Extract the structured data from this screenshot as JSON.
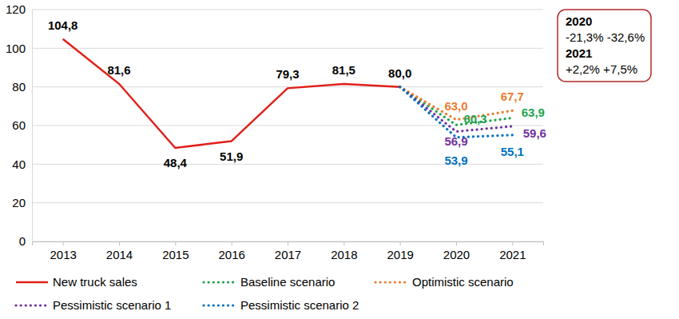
{
  "chart_data": {
    "type": "line",
    "categories": [
      "2013",
      "2014",
      "2015",
      "2016",
      "2017",
      "2018",
      "2019",
      "2020",
      "2021"
    ],
    "series": [
      {
        "name": "New truck sales",
        "color": "#e0201b",
        "line_style": "solid",
        "values": [
          104.8,
          81.6,
          48.4,
          51.9,
          79.3,
          81.5,
          80.0,
          null,
          null
        ],
        "value_labels": [
          "104,8",
          "81,6",
          "48,4",
          "51,9",
          "79,3",
          "81,5",
          "80,0",
          null,
          null
        ]
      },
      {
        "name": "Baseline scenario",
        "color": "#1fa44f",
        "line_style": "dotted",
        "values": [
          null,
          null,
          null,
          null,
          null,
          null,
          80.0,
          60.3,
          63.9
        ],
        "value_labels": [
          null,
          null,
          null,
          null,
          null,
          null,
          null,
          "60,3",
          "63,9"
        ]
      },
      {
        "name": "Optimistic scenario",
        "color": "#ed7d31",
        "line_style": "dotted",
        "values": [
          null,
          null,
          null,
          null,
          null,
          null,
          80.0,
          63.0,
          67.7
        ],
        "value_labels": [
          null,
          null,
          null,
          null,
          null,
          null,
          null,
          "63,0",
          "67,7"
        ]
      },
      {
        "name": "Pessimistic scenario 1",
        "color": "#7030a0",
        "line_style": "dotted",
        "values": [
          null,
          null,
          null,
          null,
          null,
          null,
          80.0,
          56.9,
          59.6
        ],
        "value_labels": [
          null,
          null,
          null,
          null,
          null,
          null,
          null,
          "56,9",
          "59,6"
        ]
      },
      {
        "name": "Pessimistic scenario 2",
        "color": "#0070c0",
        "line_style": "dotted",
        "values": [
          null,
          null,
          null,
          null,
          null,
          null,
          80.0,
          53.9,
          55.1
        ],
        "value_labels": [
          null,
          null,
          null,
          null,
          null,
          null,
          null,
          "53,9",
          "55,1"
        ]
      }
    ],
    "ylim": [
      0,
      120
    ],
    "yticks": [
      0,
      20,
      40,
      60,
      80,
      100,
      120
    ],
    "grid": true,
    "legend": "bottom",
    "data_labels": true,
    "annotations": [
      "2020",
      "-21,3% -32,6%",
      "2021",
      "+2,2% +7,5%"
    ]
  }
}
